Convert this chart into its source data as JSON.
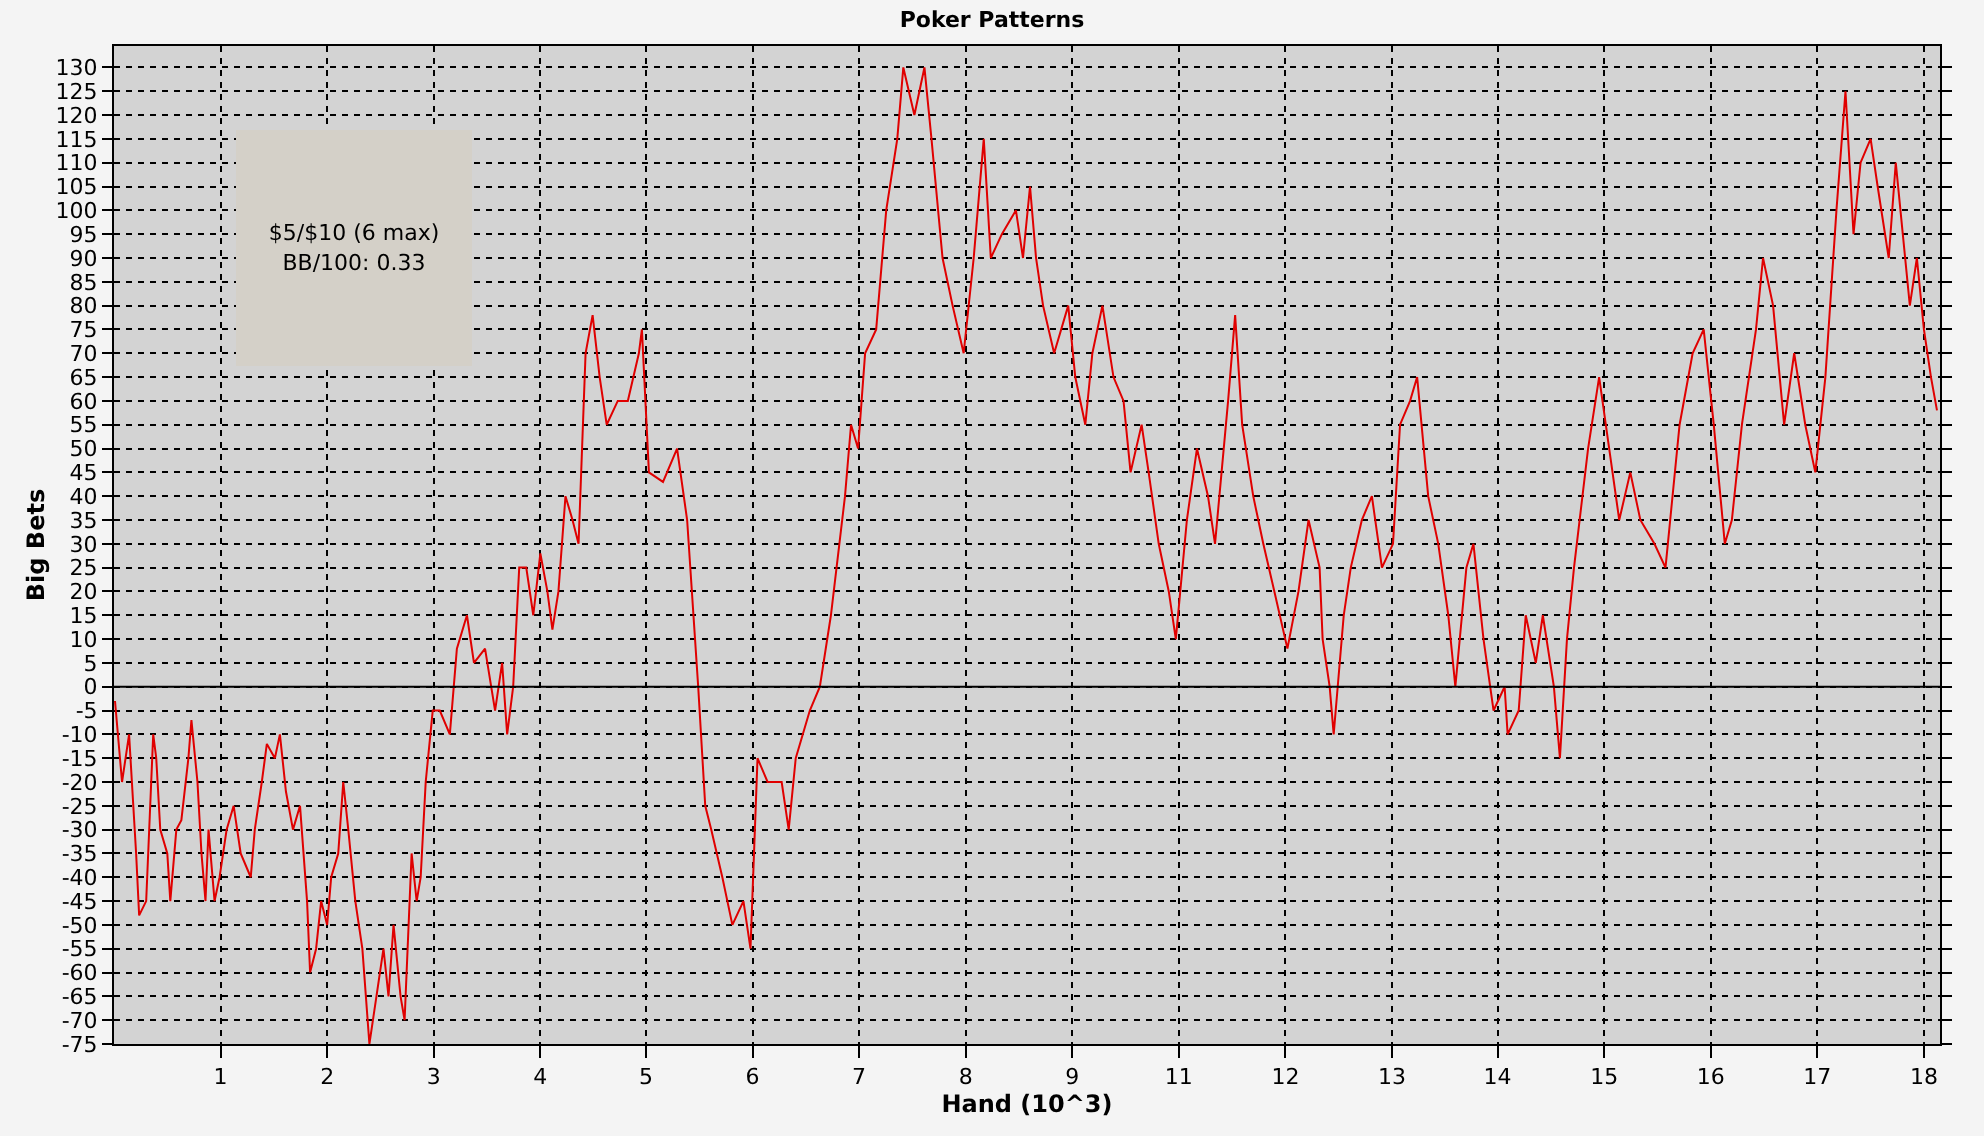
{
  "chart_data": {
    "type": "line",
    "title": "Poker Patterns",
    "xlabel": "Hand (10^3)",
    "ylabel": "Big Bets",
    "annotations": [
      "$5/$10 (6 max)",
      "BB/100: 0.33"
    ],
    "grid": true,
    "marker": "none",
    "line_style": "solid",
    "ref_lines": [
      {
        "axis": "y",
        "value": 0,
        "color": "#000000"
      }
    ],
    "xlim": [
      -0.05,
      18.11
    ],
    "xticks": [
      {
        "value": 1.01,
        "label": "1"
      },
      {
        "value": 2.07,
        "label": "2"
      },
      {
        "value": 3.13,
        "label": "3"
      },
      {
        "value": 4.19,
        "label": "4"
      },
      {
        "value": 5.24,
        "label": "5"
      },
      {
        "value": 6.3,
        "label": "6"
      },
      {
        "value": 7.36,
        "label": "7"
      },
      {
        "value": 8.42,
        "label": "8"
      },
      {
        "value": 9.48,
        "label": "9"
      },
      {
        "value": 10.54,
        "label": "11"
      },
      {
        "value": 11.6,
        "label": "12"
      },
      {
        "value": 12.66,
        "label": "13"
      },
      {
        "value": 13.71,
        "label": "14"
      },
      {
        "value": 14.77,
        "label": "15"
      },
      {
        "value": 15.83,
        "label": "16"
      },
      {
        "value": 16.89,
        "label": "17"
      },
      {
        "value": 17.95,
        "label": "18"
      }
    ],
    "ylim": [
      -75,
      134.5
    ],
    "yticks": [
      -75,
      -70,
      -65,
      -60,
      -55,
      -50,
      -45,
      -40,
      -35,
      -30,
      -25,
      -20,
      -15,
      -10,
      -5,
      0,
      5,
      10,
      15,
      20,
      25,
      30,
      35,
      40,
      45,
      50,
      55,
      60,
      65,
      70,
      75,
      80,
      85,
      90,
      95,
      100,
      105,
      110,
      115,
      120,
      125,
      130
    ],
    "series": [
      {
        "color": "#e00000",
        "x": [
          -0.04,
          0.03,
          0.1,
          0.17,
          0.2,
          0.27,
          0.34,
          0.37,
          0.41,
          0.48,
          0.51,
          0.57,
          0.62,
          0.69,
          0.72,
          0.78,
          0.82,
          0.86,
          0.89,
          0.95,
          1.0,
          1.07,
          1.14,
          1.21,
          1.31,
          1.35,
          1.42,
          1.47,
          1.55,
          1.6,
          1.66,
          1.73,
          1.8,
          1.87,
          1.9,
          1.96,
          2.01,
          2.07,
          2.11,
          2.18,
          2.23,
          2.28,
          2.35,
          2.42,
          2.49,
          2.56,
          2.63,
          2.68,
          2.73,
          2.8,
          2.84,
          2.91,
          2.96,
          3.0,
          3.05,
          3.12,
          3.19,
          3.29,
          3.36,
          3.46,
          3.53,
          3.64,
          3.74,
          3.81,
          3.86,
          3.92,
          3.98,
          4.05,
          4.12,
          4.19,
          4.26,
          4.31,
          4.37,
          4.44,
          4.51,
          4.57,
          4.64,
          4.71,
          4.78,
          4.85,
          4.96,
          5.06,
          5.17,
          5.2,
          5.27,
          5.41,
          5.55,
          5.65,
          5.76,
          5.83,
          5.89,
          6.0,
          6.1,
          6.21,
          6.28,
          6.35,
          6.45,
          6.59,
          6.66,
          6.73,
          6.87,
          6.97,
          7.08,
          7.22,
          7.28,
          7.35,
          7.42,
          7.53,
          7.63,
          7.74,
          7.8,
          7.91,
          8.01,
          8.08,
          8.19,
          8.29,
          8.4,
          8.5,
          8.6,
          8.67,
          8.78,
          8.92,
          8.99,
          9.06,
          9.12,
          9.19,
          9.3,
          9.44,
          9.51,
          9.61,
          9.68,
          9.78,
          9.89,
          9.99,
          10.06,
          10.17,
          10.24,
          10.34,
          10.44,
          10.51,
          10.62,
          10.72,
          10.83,
          10.9,
          11.03,
          11.1,
          11.17,
          11.28,
          11.38,
          11.49,
          11.62,
          11.73,
          11.83,
          11.94,
          11.97,
          12.04,
          12.08,
          12.18,
          12.25,
          12.36,
          12.46,
          12.56,
          12.67,
          12.74,
          12.84,
          12.91,
          13.02,
          13.12,
          13.22,
          13.29,
          13.4,
          13.47,
          13.57,
          13.67,
          13.78,
          13.81,
          13.92,
          13.99,
          14.09,
          14.16,
          14.27,
          14.33,
          14.4,
          14.47,
          14.61,
          14.72,
          14.82,
          14.92,
          15.03,
          15.13,
          15.27,
          15.38,
          15.52,
          15.65,
          15.76,
          15.86,
          15.97,
          16.04,
          16.14,
          16.28,
          16.35,
          16.45,
          16.56,
          16.66,
          16.77,
          16.87,
          16.97,
          17.08,
          17.17,
          17.25,
          17.32,
          17.42,
          17.49,
          17.6,
          17.67,
          17.74,
          17.81,
          17.88,
          17.95,
          18.02,
          18.08
        ],
        "values": [
          -3,
          -20,
          -10,
          -35,
          -48,
          -45,
          -10,
          -15,
          -30,
          -35,
          -45,
          -30,
          -28,
          -15,
          -7,
          -20,
          -35,
          -45,
          -30,
          -45,
          -40,
          -30,
          -25,
          -35,
          -40,
          -30,
          -20,
          -12,
          -15,
          -10,
          -22,
          -30,
          -25,
          -45,
          -60,
          -55,
          -45,
          -50,
          -40,
          -35,
          -20,
          -30,
          -45,
          -55,
          -75,
          -65,
          -55,
          -65,
          -50,
          -65,
          -70,
          -35,
          -45,
          -40,
          -20,
          -5,
          -5,
          -10,
          8,
          15,
          5,
          8,
          -5,
          5,
          -10,
          0,
          25,
          25,
          15,
          28,
          20,
          12,
          20,
          40,
          35,
          30,
          70,
          78,
          65,
          55,
          60,
          60,
          70,
          75,
          45,
          43,
          50,
          35,
          0,
          -25,
          -30,
          -40,
          -50,
          -45,
          -55,
          -15,
          -20,
          -20,
          -30,
          -15,
          -5,
          0,
          15,
          40,
          55,
          50,
          70,
          75,
          100,
          115,
          130,
          120,
          130,
          115,
          90,
          80,
          70,
          90,
          115,
          90,
          95,
          100,
          90,
          105,
          90,
          80,
          70,
          80,
          65,
          55,
          70,
          80,
          65,
          60,
          45,
          55,
          45,
          30,
          20,
          10,
          35,
          50,
          40,
          30,
          60,
          78,
          55,
          40,
          30,
          20,
          8,
          20,
          35,
          25,
          10,
          0,
          -10,
          15,
          25,
          35,
          40,
          25,
          30,
          55,
          60,
          65,
          40,
          30,
          15,
          0,
          25,
          30,
          10,
          -5,
          0,
          -10,
          -5,
          15,
          5,
          15,
          0,
          -15,
          10,
          25,
          50,
          65,
          50,
          35,
          45,
          35,
          30,
          25,
          55,
          70,
          75,
          55,
          30,
          35,
          55,
          75,
          90,
          80,
          55,
          70,
          55,
          45,
          65,
          100,
          125,
          95,
          110,
          115,
          105,
          90,
          110,
          95,
          80,
          90,
          75,
          65,
          58
        ]
      }
    ]
  }
}
